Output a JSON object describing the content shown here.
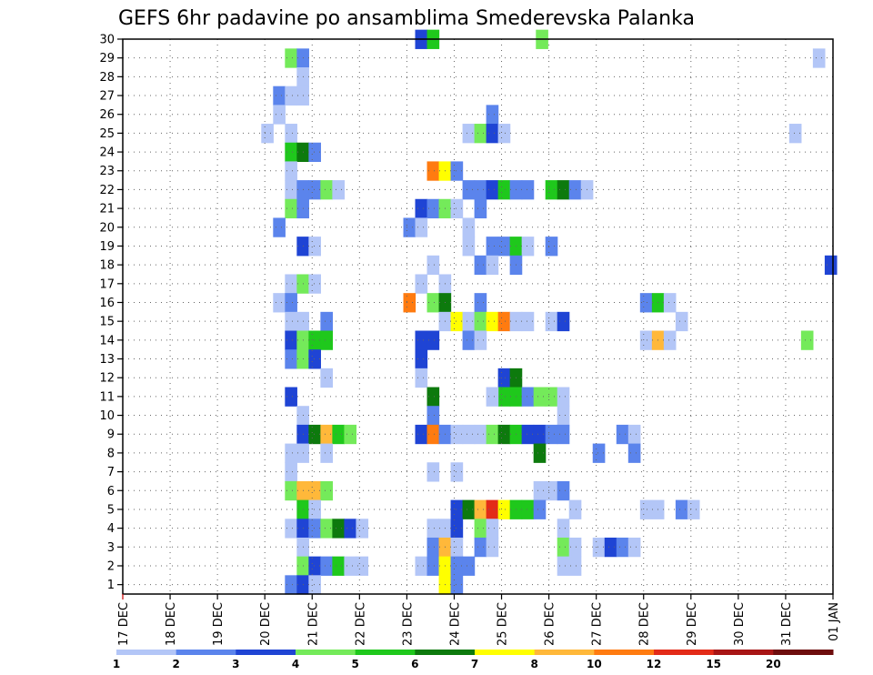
{
  "chart_data": {
    "type": "heatmap",
    "title": "GEFS 6hr padavine po ansamblima Smederevska Palanka",
    "xlabel": "",
    "ylabel": "",
    "x_ticks": [
      "17 DEC",
      "18 DEC",
      "19 DEC",
      "20 DEC",
      "21 DEC",
      "22 DEC",
      "23 DEC",
      "24 DEC",
      "25 DEC",
      "26 DEC",
      "27 DEC",
      "28 DEC",
      "29 DEC",
      "30 DEC",
      "31 DEC",
      "01 JAN"
    ],
    "y_ticks": [
      "1",
      "2",
      "3",
      "4",
      "5",
      "6",
      "7",
      "8",
      "9",
      "10",
      "11",
      "12",
      "13",
      "14",
      "15",
      "16",
      "17",
      "18",
      "19",
      "20",
      "21",
      "22",
      "23",
      "24",
      "25",
      "26",
      "27",
      "28",
      "29",
      "30"
    ],
    "xlim": [
      0,
      15
    ],
    "ylim": [
      0.5,
      30
    ],
    "grid": true,
    "colorbar": {
      "labels": [
        "1",
        "2",
        "3",
        "4",
        "5",
        "6",
        "7",
        "8",
        "10",
        "12",
        "15",
        "20"
      ],
      "colors": [
        "#b3c6f7",
        "#5b84ec",
        "#1f44d4",
        "#74ea5a",
        "#1fc81c",
        "#0d7a0d",
        "#ffff00",
        "#ffb83a",
        "#ff7b10",
        "#e32b18",
        "#a81515",
        "#6e0d0d"
      ]
    },
    "legend": "colorbar-bottom",
    "cells": [
      [
        30,
        [
          [
            6.3,
            3
          ],
          [
            6.55,
            5
          ],
          [
            8.85,
            4
          ]
        ]
      ],
      [
        29,
        [
          [
            3.55,
            4
          ],
          [
            3.8,
            2
          ],
          [
            14.7,
            1
          ]
        ]
      ],
      [
        28,
        [
          [
            3.8,
            1
          ]
        ]
      ],
      [
        27,
        [
          [
            3.3,
            2
          ],
          [
            3.55,
            1
          ],
          [
            3.8,
            1
          ]
        ]
      ],
      [
        26,
        [
          [
            3.3,
            1
          ],
          [
            7.8,
            2
          ]
        ]
      ],
      [
        25,
        [
          [
            3.05,
            1
          ],
          [
            3.55,
            1
          ],
          [
            7.3,
            1
          ],
          [
            7.55,
            4
          ],
          [
            7.8,
            3
          ],
          [
            8.05,
            1
          ],
          [
            14.2,
            1
          ]
        ]
      ],
      [
        24,
        [
          [
            3.55,
            5
          ],
          [
            3.8,
            6
          ],
          [
            4.05,
            2
          ]
        ]
      ],
      [
        23,
        [
          [
            3.55,
            1
          ],
          [
            6.55,
            9
          ],
          [
            6.8,
            7
          ],
          [
            7.05,
            2
          ]
        ]
      ],
      [
        22,
        [
          [
            3.55,
            1
          ],
          [
            3.8,
            2
          ],
          [
            4.05,
            2
          ],
          [
            4.3,
            4
          ],
          [
            4.55,
            1
          ],
          [
            7.3,
            2
          ],
          [
            7.55,
            2
          ],
          [
            7.8,
            3
          ],
          [
            8.05,
            5
          ],
          [
            8.3,
            2
          ],
          [
            8.55,
            2
          ],
          [
            9.05,
            5
          ],
          [
            9.3,
            6
          ],
          [
            9.55,
            2
          ],
          [
            9.8,
            1
          ]
        ]
      ],
      [
        21,
        [
          [
            3.55,
            4
          ],
          [
            3.8,
            2
          ],
          [
            6.3,
            3
          ],
          [
            6.55,
            2
          ],
          [
            6.8,
            4
          ],
          [
            7.05,
            1
          ],
          [
            7.55,
            2
          ]
        ]
      ],
      [
        20,
        [
          [
            3.3,
            2
          ],
          [
            6.05,
            2
          ],
          [
            6.3,
            1
          ],
          [
            7.3,
            1
          ]
        ]
      ],
      [
        19,
        [
          [
            3.8,
            3
          ],
          [
            4.05,
            1
          ],
          [
            7.3,
            1
          ],
          [
            7.8,
            2
          ],
          [
            8.05,
            2
          ],
          [
            8.3,
            5
          ],
          [
            8.55,
            1
          ],
          [
            9.05,
            2
          ]
        ]
      ],
      [
        18,
        [
          [
            6.55,
            1
          ],
          [
            7.55,
            2
          ],
          [
            7.8,
            1
          ],
          [
            8.3,
            2
          ],
          [
            14.95,
            3
          ]
        ]
      ],
      [
        17,
        [
          [
            3.55,
            1
          ],
          [
            3.8,
            4
          ],
          [
            4.05,
            1
          ],
          [
            6.3,
            1
          ],
          [
            6.8,
            1
          ]
        ]
      ],
      [
        16,
        [
          [
            3.3,
            1
          ],
          [
            3.55,
            2
          ],
          [
            6.05,
            9
          ],
          [
            6.55,
            4
          ],
          [
            6.8,
            6
          ],
          [
            7.55,
            2
          ],
          [
            11.05,
            2
          ],
          [
            11.3,
            5
          ],
          [
            11.55,
            1
          ]
        ]
      ],
      [
        15,
        [
          [
            3.55,
            1
          ],
          [
            3.8,
            1
          ],
          [
            4.3,
            2
          ],
          [
            6.8,
            1
          ],
          [
            7.05,
            7
          ],
          [
            7.3,
            1
          ],
          [
            7.55,
            4
          ],
          [
            7.8,
            7
          ],
          [
            8.05,
            9
          ],
          [
            8.3,
            1
          ],
          [
            8.55,
            1
          ],
          [
            9.05,
            1
          ],
          [
            9.3,
            3
          ],
          [
            11.8,
            1
          ]
        ]
      ],
      [
        14,
        [
          [
            3.55,
            3
          ],
          [
            3.8,
            4
          ],
          [
            4.05,
            5
          ],
          [
            4.3,
            5
          ],
          [
            6.3,
            3
          ],
          [
            6.55,
            3
          ],
          [
            7.3,
            2
          ],
          [
            7.55,
            1
          ],
          [
            11.05,
            1
          ],
          [
            11.3,
            8
          ],
          [
            11.55,
            1
          ],
          [
            14.45,
            4
          ]
        ]
      ],
      [
        13,
        [
          [
            3.55,
            2
          ],
          [
            3.8,
            4
          ],
          [
            4.05,
            3
          ],
          [
            6.3,
            3
          ]
        ]
      ],
      [
        12,
        [
          [
            8.05,
            3
          ],
          [
            8.3,
            6
          ],
          [
            4.3,
            1
          ],
          [
            6.3,
            1
          ]
        ]
      ],
      [
        11,
        [
          [
            3.55,
            3
          ],
          [
            6.55,
            6
          ],
          [
            8.05,
            5
          ],
          [
            8.3,
            5
          ],
          [
            8.55,
            2
          ],
          [
            8.8,
            4
          ],
          [
            9.05,
            4
          ],
          [
            7.8,
            1
          ],
          [
            9.3,
            1
          ]
        ]
      ],
      [
        10,
        [
          [
            3.8,
            1
          ],
          [
            6.55,
            2
          ],
          [
            9.3,
            1
          ]
        ]
      ],
      [
        9,
        [
          [
            3.8,
            3
          ],
          [
            4.05,
            6
          ],
          [
            4.3,
            8
          ],
          [
            4.55,
            5
          ],
          [
            4.8,
            4
          ],
          [
            6.3,
            3
          ],
          [
            6.55,
            9
          ],
          [
            6.8,
            2
          ],
          [
            7.05,
            1
          ],
          [
            7.3,
            1
          ],
          [
            7.55,
            1
          ],
          [
            7.8,
            4
          ],
          [
            8.05,
            6
          ],
          [
            8.3,
            5
          ],
          [
            8.55,
            3
          ],
          [
            8.8,
            3
          ],
          [
            9.05,
            2
          ],
          [
            9.3,
            2
          ],
          [
            10.55,
            2
          ],
          [
            10.8,
            1
          ]
        ]
      ],
      [
        8,
        [
          [
            3.55,
            1
          ],
          [
            3.8,
            1
          ],
          [
            4.3,
            1
          ],
          [
            8.8,
            6
          ],
          [
            10.05,
            2
          ],
          [
            10.8,
            2
          ]
        ]
      ],
      [
        7,
        [
          [
            3.55,
            1
          ],
          [
            6.55,
            1
          ],
          [
            7.05,
            1
          ]
        ]
      ],
      [
        6,
        [
          [
            3.55,
            4
          ],
          [
            3.8,
            8
          ],
          [
            4.05,
            8
          ],
          [
            4.3,
            4
          ],
          [
            8.8,
            1
          ],
          [
            9.05,
            1
          ],
          [
            9.3,
            2
          ]
        ]
      ],
      [
        5,
        [
          [
            3.8,
            5
          ],
          [
            4.05,
            1
          ],
          [
            7.05,
            3
          ],
          [
            7.3,
            6
          ],
          [
            7.55,
            8
          ],
          [
            7.8,
            10
          ],
          [
            8.05,
            7
          ],
          [
            8.3,
            5
          ],
          [
            8.55,
            5
          ],
          [
            8.8,
            2
          ],
          [
            9.55,
            1
          ],
          [
            11.05,
            1
          ],
          [
            11.3,
            1
          ],
          [
            11.8,
            2
          ],
          [
            12.05,
            1
          ]
        ]
      ],
      [
        4,
        [
          [
            3.55,
            1
          ],
          [
            3.8,
            3
          ],
          [
            4.05,
            2
          ],
          [
            4.3,
            4
          ],
          [
            4.55,
            6
          ],
          [
            4.8,
            3
          ],
          [
            5.05,
            1
          ],
          [
            6.55,
            1
          ],
          [
            6.8,
            1
          ],
          [
            7.05,
            3
          ],
          [
            7.55,
            4
          ],
          [
            7.8,
            1
          ],
          [
            9.3,
            1
          ]
        ]
      ],
      [
        3,
        [
          [
            3.8,
            1
          ],
          [
            6.55,
            2
          ],
          [
            6.8,
            8
          ],
          [
            7.05,
            1
          ],
          [
            7.55,
            2
          ],
          [
            7.8,
            1
          ],
          [
            9.3,
            4
          ],
          [
            9.55,
            1
          ],
          [
            10.05,
            1
          ],
          [
            10.3,
            3
          ],
          [
            10.55,
            2
          ],
          [
            10.8,
            1
          ]
        ]
      ],
      [
        2,
        [
          [
            3.8,
            4
          ],
          [
            4.05,
            3
          ],
          [
            4.3,
            2
          ],
          [
            4.55,
            5
          ],
          [
            4.8,
            1
          ],
          [
            5.05,
            1
          ],
          [
            6.3,
            1
          ],
          [
            6.55,
            2
          ],
          [
            6.8,
            7
          ],
          [
            7.05,
            2
          ],
          [
            7.3,
            2
          ],
          [
            9.3,
            1
          ],
          [
            9.55,
            1
          ]
        ]
      ],
      [
        1,
        [
          [
            3.55,
            2
          ],
          [
            3.8,
            3
          ],
          [
            4.05,
            1
          ],
          [
            6.8,
            7
          ],
          [
            7.05,
            2
          ]
        ]
      ]
    ]
  }
}
